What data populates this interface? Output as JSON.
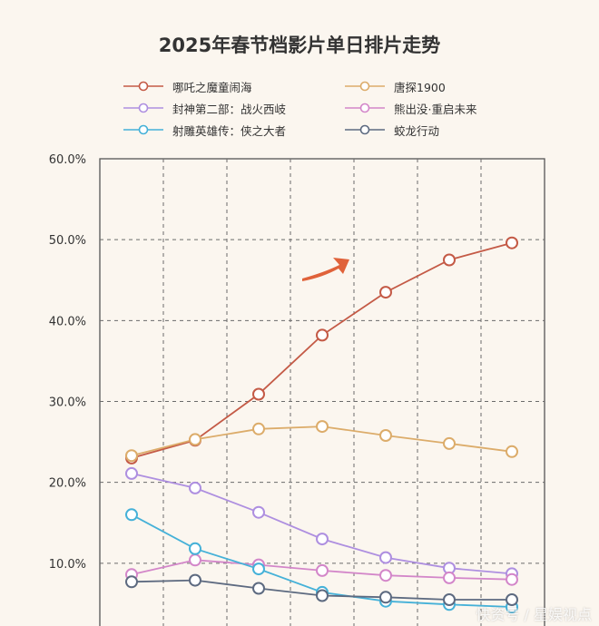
{
  "chart_data": {
    "type": "line",
    "title": "2025年春节档影片单日排片走势",
    "xlabel": "",
    "ylabel": "",
    "ylim": [
      0,
      60
    ],
    "y_ticks": [
      "10.0%",
      "20.0%",
      "30.0%",
      "40.0%",
      "50.0%",
      "60.0%"
    ],
    "y_tick_values": [
      10,
      20,
      30,
      40,
      50,
      60
    ],
    "x": [
      1,
      2,
      3,
      4,
      5,
      6,
      7
    ],
    "grid": true,
    "legend_position": "top",
    "series": [
      {
        "name": "哪吒之魔童闹海",
        "color": "#c45a46",
        "values": [
          23.0,
          25.2,
          30.9,
          38.2,
          43.5,
          47.5,
          49.6
        ]
      },
      {
        "name": "唐探1900",
        "color": "#dcac6a",
        "values": [
          23.3,
          25.3,
          26.6,
          26.9,
          25.8,
          24.8,
          23.8
        ]
      },
      {
        "name": "封神第二部：战火西岐",
        "color": "#ae8fe0",
        "values": [
          21.1,
          19.3,
          16.3,
          13.0,
          10.7,
          9.4,
          8.7
        ]
      },
      {
        "name": "熊出没·重启未来",
        "color": "#d386c9",
        "values": [
          8.6,
          10.4,
          9.8,
          9.1,
          8.5,
          8.2,
          8.0
        ]
      },
      {
        "name": "射雕英雄传：侠之大者",
        "color": "#45b1d8",
        "values": [
          16.0,
          11.8,
          9.3,
          6.4,
          5.3,
          4.9,
          4.6
        ]
      },
      {
        "name": "蛟龙行动",
        "color": "#5d6a80",
        "values": [
          7.7,
          7.9,
          6.9,
          6.0,
          5.8,
          5.5,
          5.5
        ]
      }
    ]
  },
  "watermark": "快资号 / 星娱视点"
}
